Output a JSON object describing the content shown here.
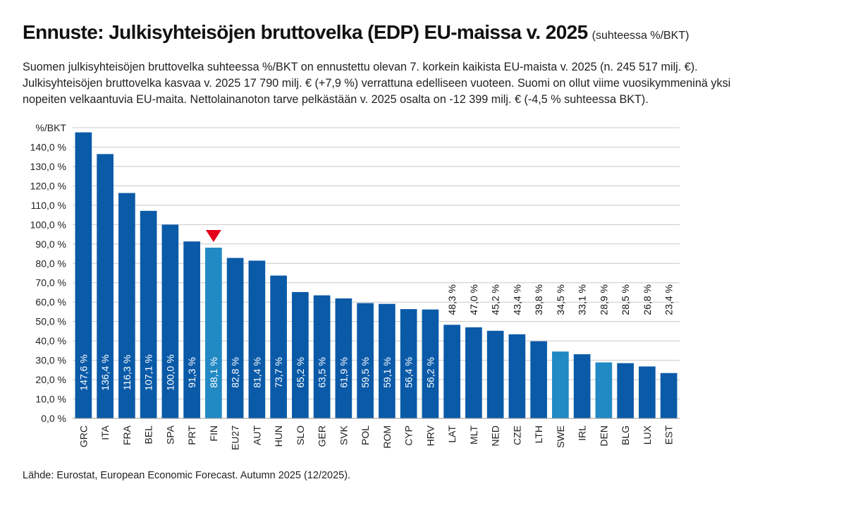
{
  "title": "Ennuste: Julkisyhteisöjen bruttovelka (EDP) EU-maissa v. 2025",
  "subtitle": "(suhteessa %/BKT)",
  "description_lines": [
    "Suomen julkisyhteisöjen bruttovelka suhteessa %/BKT on ennustettu olevan 7. korkein kaikista EU-maista v. 2025 (n. 245 517 milj. €).",
    "Julkisyhteisöjen bruttovelka kasvaa v. 2025 17 790 milj. € (+7,9 %) verrattuna edelliseen vuoteen. Suomi on ollut viime vuosikymmeninä yksi",
    "nopeiten velkaantuvia EU-maita. Nettolainanoton tarve pelkästään v. 2025 osalta on -12 399 milj. € (-4,5 % suhteessa BKT)."
  ],
  "source": "Lähde: Eurostat, European Economic Forecast. Autumn 2025 (12/2025).",
  "colors": {
    "bar": "#0a5aa8",
    "highlight": "#2189c4",
    "marker": "#e3001b",
    "grid": "#c8c8c8"
  },
  "chart_data": {
    "type": "bar",
    "ylabel": "%/BKT",
    "ylim": [
      0,
      150
    ],
    "yticks": [
      "0,0 %",
      "10,0 %",
      "20,0 %",
      "30,0 %",
      "40,0 %",
      "50,0 %",
      "60,0 %",
      "70,0 %",
      "80,0 %",
      "90,0 %",
      "100,0 %",
      "110,0 %",
      "120,0 %",
      "130,0 %",
      "140,0 %"
    ],
    "categories": [
      "GRC",
      "ITA",
      "FRA",
      "BEL",
      "SPA",
      "PRT",
      "FIN",
      "EU27",
      "AUT",
      "HUN",
      "SLO",
      "GER",
      "SVK",
      "POL",
      "ROM",
      "CYP",
      "HRV",
      "LAT",
      "MLT",
      "NED",
      "CZE",
      "LTH",
      "SWE",
      "IRL",
      "DEN",
      "BLG",
      "LUX",
      "EST"
    ],
    "values": [
      147.6,
      136.4,
      116.3,
      107.1,
      100.0,
      91.3,
      88.1,
      82.8,
      81.4,
      73.7,
      65.2,
      63.5,
      61.9,
      59.5,
      59.1,
      56.4,
      56.2,
      48.3,
      47.0,
      45.2,
      43.4,
      39.8,
      34.5,
      33.1,
      28.9,
      28.5,
      26.8,
      23.4
    ],
    "value_labels": [
      "147,6 %",
      "136,4 %",
      "116,3 %",
      "107,1 %",
      "100,0 %",
      "91,3 %",
      "88,1 %",
      "82,8 %",
      "81,4 %",
      "73,7 %",
      "65,2 %",
      "63,5 %",
      "61,9 %",
      "59,5 %",
      "59,1 %",
      "56,4 %",
      "56,2 %",
      "48,3 %",
      "47,0 %",
      "45,2 %",
      "43,4 %",
      "39,8 %",
      "34,5 %",
      "33,1 %",
      "28,9 %",
      "28,5 %",
      "26,8 %",
      "23,4 %"
    ],
    "highlighted": [
      "FIN",
      "SWE",
      "DEN"
    ],
    "marked": "FIN"
  }
}
